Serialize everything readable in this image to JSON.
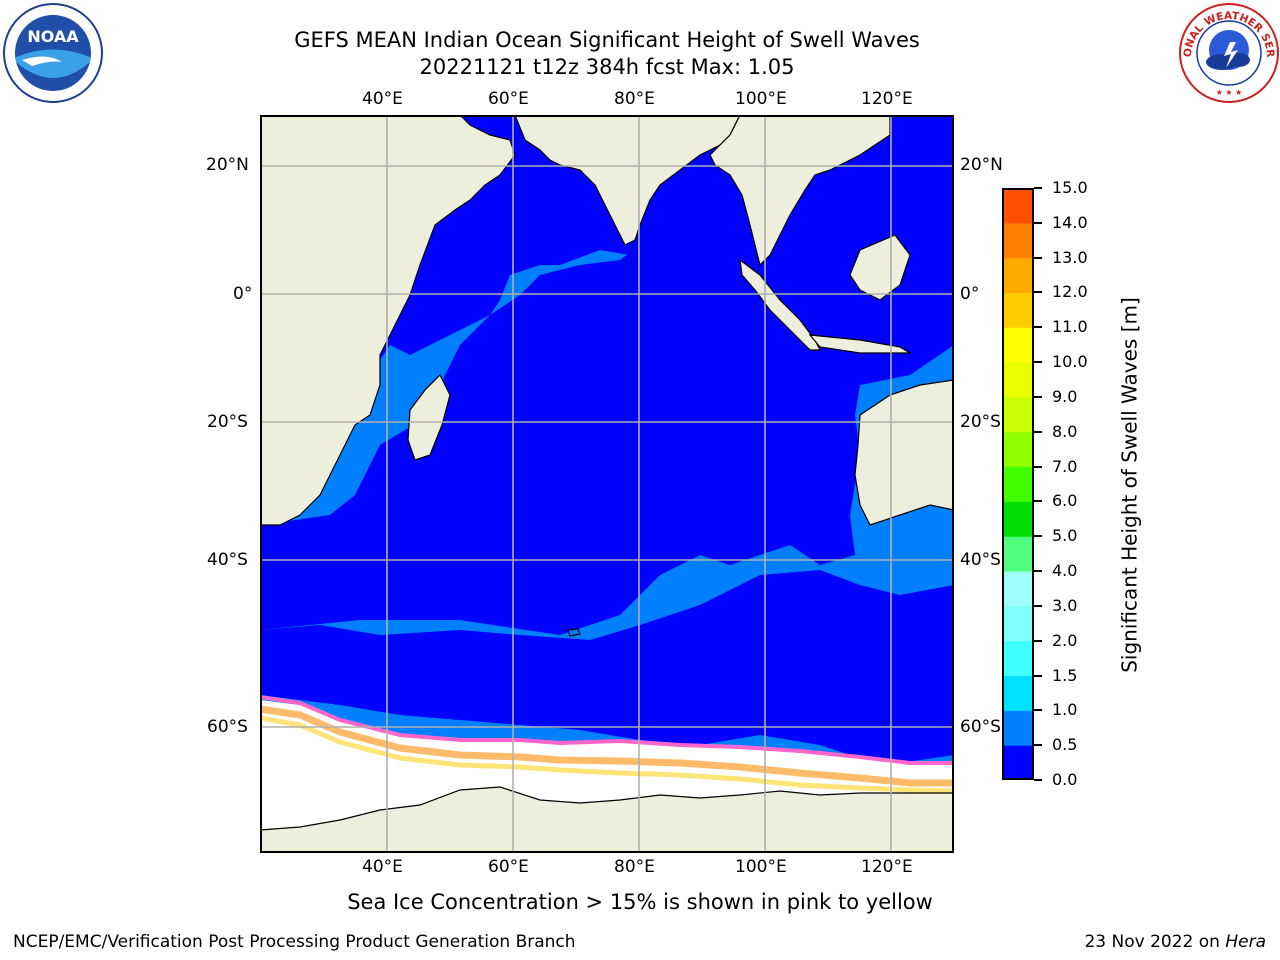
{
  "title": {
    "line1": "GEFS MEAN Indian Ocean Significant Height of Swell Waves",
    "line2": "20221121 t12z 384h fcst   Max: 1.05"
  },
  "logos": {
    "left": {
      "icon": "noaa-logo-icon",
      "text": "NOAA"
    },
    "right": {
      "icon": "nws-logo-icon",
      "text": "NATIONAL WEATHER SERVICE"
    }
  },
  "map": {
    "lon_labels": [
      "40°E",
      "60°E",
      "80°E",
      "100°E",
      "120°E"
    ],
    "lat_labels": [
      "20°N",
      "0°",
      "20°S",
      "40°S",
      "60°S"
    ],
    "colors": {
      "land": "#eeeedd",
      "sea_ice": "#ffffff",
      "coast": "#000000",
      "grid": "#b0b0b0"
    }
  },
  "colorbar": {
    "label": "Significant Height of Swell Waves [m]",
    "ticks": [
      "0.0",
      "0.5",
      "1.0",
      "1.5",
      "2.0",
      "3.0",
      "4.0",
      "5.0",
      "6.0",
      "7.0",
      "8.0",
      "9.0",
      "10.0",
      "11.0",
      "12.0",
      "13.0",
      "14.0",
      "15.0"
    ],
    "colors": [
      "#0000ff",
      "#0080ff",
      "#00e0ff",
      "#40ffff",
      "#80ffff",
      "#a0ffff",
      "#50ff80",
      "#00dd00",
      "#40ff00",
      "#90ff00",
      "#c8ff00",
      "#e8ff00",
      "#ffff00",
      "#ffcc00",
      "#ffaa00",
      "#ff8000",
      "#ff5000",
      "#ff2000",
      "#ff0000"
    ]
  },
  "caption": "Sea Ice Concentration > 15% is shown in pink to yellow",
  "footer": {
    "left": "NCEP/EMC/Verification Post Processing Product Generation Branch",
    "right_date": "23 Nov 2022 on ",
    "right_host": "Hera"
  }
}
